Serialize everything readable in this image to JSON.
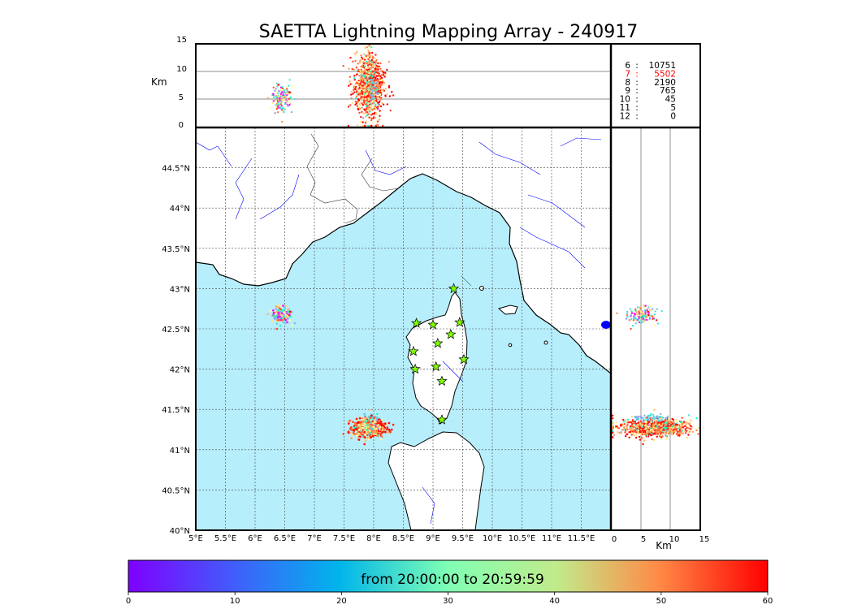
{
  "title": "SAETTA Lightning Mapping Array - 240917",
  "alt_axis": {
    "label": "Km",
    "ticks": [
      "0",
      "5",
      "10",
      "15"
    ]
  },
  "side_axis": {
    "xlabel": "Km",
    "ticks": [
      "0",
      "5",
      "10",
      "15"
    ]
  },
  "map": {
    "lon_ticks": [
      "5°E",
      "5.5°E",
      "6°E",
      "6.5°E",
      "7°E",
      "7.5°E",
      "8°E",
      "8.5°E",
      "9°E",
      "9.5°E",
      "10°E",
      "10.5°E",
      "11°E",
      "11.5°E"
    ],
    "lat_ticks": [
      "40°N",
      "40.5°N",
      "41°N",
      "41.5°N",
      "42°N",
      "42.5°N",
      "43°N",
      "43.5°N",
      "44°N",
      "44.5°N"
    ]
  },
  "station_stats": [
    {
      "n": "6",
      "count": "10751",
      "color": "#000000"
    },
    {
      "n": "7",
      "count": "5502",
      "color": "#ff0000"
    },
    {
      "n": "8",
      "count": "2190",
      "color": "#000000"
    },
    {
      "n": "9",
      "count": "765",
      "color": "#000000"
    },
    {
      "n": "10",
      "count": "45",
      "color": "#000000"
    },
    {
      "n": "11",
      "count": "5",
      "color": "#000000"
    },
    {
      "n": "12",
      "count": "0",
      "color": "#000000"
    }
  ],
  "colorbar": {
    "label": "from 20:00:00 to 20:59:59",
    "ticks": [
      "0",
      "10",
      "20",
      "30",
      "40",
      "50",
      "60"
    ],
    "range": [
      0,
      60
    ]
  },
  "colors": {
    "sea": "#b7eefc",
    "river": "#0000ff",
    "station": "#7fff00"
  },
  "chart_data": {
    "type": "scatter",
    "title": "SAETTA Lightning Mapping Array - 240917",
    "xlim": [
      5,
      12
    ],
    "ylim": [
      40,
      45
    ],
    "alt_lim": [
      0,
      15
    ],
    "color_range_min": [
      0,
      60
    ],
    "stations": [
      {
        "lon": 9.35,
        "lat": 43.0
      },
      {
        "lon": 8.72,
        "lat": 42.57
      },
      {
        "lon": 9.0,
        "lat": 42.55
      },
      {
        "lon": 9.45,
        "lat": 42.58
      },
      {
        "lon": 9.3,
        "lat": 42.43
      },
      {
        "lon": 9.08,
        "lat": 42.32
      },
      {
        "lon": 8.67,
        "lat": 42.22
      },
      {
        "lon": 9.52,
        "lat": 42.12
      },
      {
        "lon": 8.7,
        "lat": 42.0
      },
      {
        "lon": 9.05,
        "lat": 42.03
      },
      {
        "lon": 9.15,
        "lat": 41.85
      },
      {
        "lon": 9.15,
        "lat": 41.37
      }
    ],
    "clusters": [
      {
        "lon": 6.45,
        "lat": 42.67,
        "lon_spread": 0.08,
        "lat_spread": 0.05,
        "alt": 5.2,
        "alt_spread": 1.2,
        "t_min": 28,
        "t_spread": 18,
        "n": 160
      },
      {
        "lon": 7.92,
        "lat": 41.27,
        "lon_spread": 0.13,
        "lat_spread": 0.05,
        "alt": 7.5,
        "alt_spread": 2.5,
        "t_min": 55,
        "t_spread": 9,
        "n": 700
      },
      {
        "lon": 7.98,
        "lat": 41.4,
        "lon_spread": 0.04,
        "lat_spread": 0.02,
        "alt": 7.0,
        "alt_spread": 1.5,
        "t_min": 17,
        "t_spread": 3,
        "n": 60
      },
      {
        "lon": 7.9,
        "lat": 41.28,
        "lon_spread": 0.1,
        "lat_spread": 0.06,
        "alt": 7.0,
        "alt_spread": 3.5,
        "t_min": 40,
        "t_spread": 12,
        "n": 250
      }
    ]
  }
}
